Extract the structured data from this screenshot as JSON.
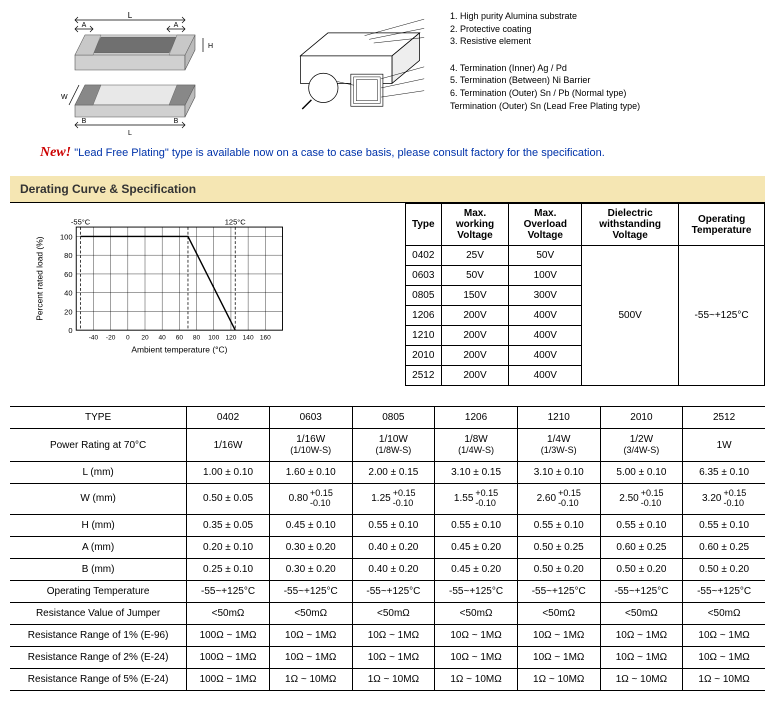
{
  "legend": {
    "items": [
      "1. High purity Alumina substrate",
      "2. Protective coating",
      "3. Resistive element",
      "4. Termination (Inner) Ag / Pd",
      "5. Termination (Between) Ni Barrier",
      "6. Termination (Outer) Sn / Pb (Normal type)",
      "Termination (Outer) Sn (Lead Free Plating type)"
    ]
  },
  "new_line": {
    "label": "New!",
    "text": "\"Lead Free Plating\" type is available now on a case to case basis, please consult factory for the specification."
  },
  "section_header": "Derating Curve & Specification",
  "chart": {
    "ylabel": "Percent rated load (%)",
    "xlabel": "Ambient temperature (°C)",
    "ylim": [
      0,
      110
    ],
    "ytick_step": 20,
    "xlim": [
      -60,
      180
    ],
    "xtick_step": 20,
    "markers": {
      "left_dash_x": -55,
      "mid_dash_x": 70,
      "label_left": "-55°C",
      "label_right": "125°C"
    },
    "line_points_pct": [
      [
        -55,
        100
      ],
      [
        70,
        100
      ],
      [
        125,
        0
      ]
    ],
    "grid_color": "#000",
    "line_color": "#000",
    "background": "#ffffff"
  },
  "spec_table": {
    "headers": [
      "Type",
      "Max. working Voltage",
      "Max. Overload Voltage",
      "Dielectric withstanding Voltage",
      "Operating Temperature"
    ],
    "rows": [
      [
        "0402",
        "25V",
        "50V"
      ],
      [
        "0603",
        "50V",
        "100V"
      ],
      [
        "0805",
        "150V",
        "300V"
      ],
      [
        "1206",
        "200V",
        "400V"
      ],
      [
        "1210",
        "200V",
        "400V"
      ],
      [
        "2010",
        "200V",
        "400V"
      ],
      [
        "2512",
        "200V",
        "400V"
      ]
    ],
    "dielectric": "500V",
    "operating_temp": "-55~+125°C"
  },
  "main_table": {
    "header": [
      "TYPE",
      "0402",
      "0603",
      "0805",
      "1206",
      "1210",
      "2010",
      "2512"
    ],
    "rows": [
      {
        "label": "Power Rating at 70°C",
        "cells": [
          "1/16W",
          "1/16W\n(1/10W-S)",
          "1/10W\n(1/8W-S)",
          "1/8W\n(1/4W-S)",
          "1/4W\n(1/3W-S)",
          "1/2W\n(3/4W-S)",
          "1W"
        ]
      },
      {
        "label": "L (mm)",
        "cells": [
          "1.00 ± 0.10",
          "1.60 ± 0.10",
          "2.00 ± 0.15",
          "3.10 ± 0.15",
          "3.10 ± 0.10",
          "5.00 ± 0.10",
          "6.35 ± 0.10"
        ]
      },
      {
        "label": "W (mm)",
        "tol": true,
        "cells": [
          {
            "plain": "0.50 ± 0.05"
          },
          {
            "base": "0.80",
            "p": "+0.15",
            "m": "-0.10"
          },
          {
            "base": "1.25",
            "p": "+0.15",
            "m": "-0.10"
          },
          {
            "base": "1.55",
            "p": "+0.15",
            "m": "-0.10"
          },
          {
            "base": "2.60",
            "p": "+0.15",
            "m": "-0.10"
          },
          {
            "base": "2.50",
            "p": "+0.15",
            "m": "-0.10"
          },
          {
            "base": "3.20",
            "p": "+0.15",
            "m": "-0.10"
          }
        ]
      },
      {
        "label": "H (mm)",
        "cells": [
          "0.35 ± 0.05",
          "0.45 ± 0.10",
          "0.55 ± 0.10",
          "0.55 ± 0.10",
          "0.55 ± 0.10",
          "0.55 ± 0.10",
          "0.55 ± 0.10"
        ]
      },
      {
        "label": "A (mm)",
        "cells": [
          "0.20 ± 0.10",
          "0.30 ± 0.20",
          "0.40 ± 0.20",
          "0.45 ± 0.20",
          "0.50 ± 0.25",
          "0.60 ± 0.25",
          "0.60 ± 0.25"
        ]
      },
      {
        "label": "B (mm)",
        "cells": [
          "0.25 ± 0.10",
          "0.30 ± 0.20",
          "0.40 ± 0.20",
          "0.45 ± 0.20",
          "0.50 ± 0.20",
          "0.50 ± 0.20",
          "0.50 ± 0.20"
        ]
      },
      {
        "label": "Operating Temperature",
        "cells": [
          "-55~+125°C",
          "-55~+125°C",
          "-55~+125°C",
          "-55~+125°C",
          "-55~+125°C",
          "-55~+125°C",
          "-55~+125°C"
        ]
      },
      {
        "label": "Resistance Value of Jumper",
        "cells": [
          "<50mΩ",
          "<50mΩ",
          "<50mΩ",
          "<50mΩ",
          "<50mΩ",
          "<50mΩ",
          "<50mΩ"
        ]
      },
      {
        "label": "Resistance Range of 1% (E-96)",
        "cells": [
          "100Ω ~ 1MΩ",
          "10Ω ~ 1MΩ",
          "10Ω ~ 1MΩ",
          "10Ω ~ 1MΩ",
          "10Ω ~ 1MΩ",
          "10Ω ~ 1MΩ",
          "10Ω ~ 1MΩ"
        ]
      },
      {
        "label": "Resistance Range of 2% (E-24)",
        "cells": [
          "100Ω ~ 1MΩ",
          "10Ω ~ 1MΩ",
          "10Ω ~ 1MΩ",
          "10Ω ~ 1MΩ",
          "10Ω ~ 1MΩ",
          "10Ω ~ 1MΩ",
          "10Ω ~ 1MΩ"
        ]
      },
      {
        "label": "Resistance Range of 5% (E-24)",
        "cells": [
          "100Ω ~ 1MΩ",
          "1Ω ~ 10MΩ",
          "1Ω ~ 10MΩ",
          "1Ω ~ 10MΩ",
          "1Ω ~ 10MΩ",
          "1Ω ~ 10MΩ",
          "1Ω ~ 10MΩ"
        ]
      }
    ]
  },
  "dim_labels": {
    "L": "L",
    "W": "W",
    "A": "A",
    "B": "B",
    "H": "H"
  }
}
